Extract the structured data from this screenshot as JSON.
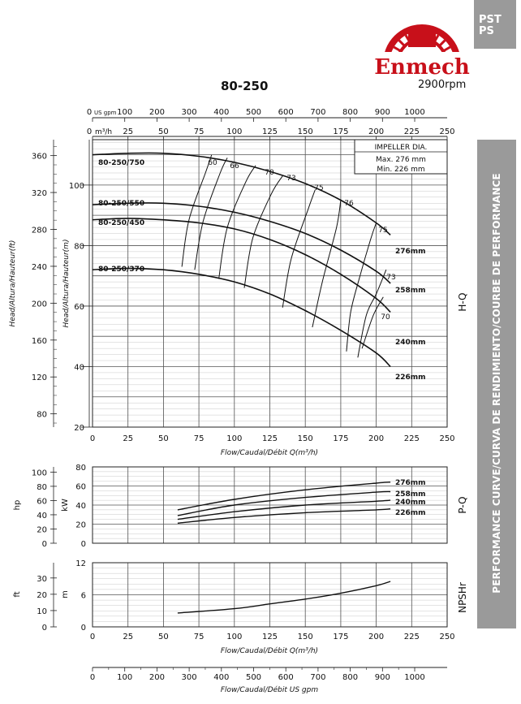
{
  "corner_tag": {
    "line1": "PST",
    "line2": "PS"
  },
  "logo": {
    "brand": "Enmech"
  },
  "header": {
    "model": "80-250",
    "speed": "2900rpm"
  },
  "side_panel": {
    "text": "PERFORMANCE CURVE/CURVA DE RENDIMIENTO/COURBE DE PERFORMANCE"
  },
  "colors": {
    "panel_gray": "#9a9a9a",
    "logo_red": "#c8101a",
    "grid_major": "#555555",
    "grid_minor": "#c8c8c8",
    "line": "#111111"
  },
  "chart_data": [
    {
      "type": "line",
      "name": "H-Q",
      "panel_label": "H-Q",
      "ylabel_left": "Head/Altura/Hauteur(ft)",
      "ylabel_right": "Head/Altura/Hauteur(m)",
      "xlabel": "Flow/Caudal/Débit Q(m³/h)",
      "xlim": [
        0,
        250
      ],
      "ylim": [
        20,
        115
      ],
      "x_ticks": [
        0,
        25,
        50,
        75,
        100,
        125,
        150,
        175,
        200,
        225,
        250
      ],
      "y_ticks_m": [
        20,
        40,
        60,
        80,
        100
      ],
      "y_ticks_ft": [
        80,
        120,
        160,
        200,
        240,
        280,
        320,
        360
      ],
      "top_axis_m3h": {
        "unit": "m³/h",
        "ticks": [
          0,
          25,
          50,
          75,
          100,
          125,
          150,
          175,
          200,
          225,
          250
        ]
      },
      "top_axis_gpm": {
        "unit": "US gpm",
        "ticks": [
          0,
          100,
          200,
          300,
          400,
          500,
          600,
          700,
          800,
          900,
          1000
        ]
      },
      "impeller_box": {
        "title": "IMPELLER DIA.",
        "max": "Max. 276 mm",
        "min": "Min.  226 mm"
      },
      "series": [
        {
          "name": "276mm",
          "motor": "80-250/750",
          "x": [
            0,
            25,
            50,
            75,
            100,
            125,
            150,
            175,
            200,
            210
          ],
          "y": [
            110,
            110.5,
            110.5,
            109.5,
            107.5,
            104.5,
            100.5,
            95,
            87.5,
            83.5
          ]
        },
        {
          "name": "258mm",
          "motor": "80-250/550",
          "x": [
            0,
            25,
            50,
            75,
            100,
            125,
            150,
            175,
            200,
            210
          ],
          "y": [
            93.5,
            94,
            94,
            93,
            91,
            88,
            84,
            78.5,
            71.5,
            67.5
          ]
        },
        {
          "name": "240mm",
          "motor": "80-250/450",
          "x": [
            0,
            25,
            50,
            75,
            100,
            125,
            150,
            175,
            200,
            210
          ],
          "y": [
            88.5,
            89,
            88.5,
            87.5,
            85.5,
            82,
            77,
            70.5,
            62.5,
            58
          ]
        },
        {
          "name": "226mm",
          "motor": "80-250/370",
          "x": [
            0,
            25,
            50,
            75,
            100,
            125,
            150,
            175,
            200,
            210
          ],
          "y": [
            72,
            72.5,
            72,
            70.5,
            68,
            64,
            58.5,
            52,
            44.5,
            40
          ]
        }
      ],
      "efficiency_labels": [
        "60",
        "66",
        "70",
        "73",
        "75",
        "76",
        "75",
        "73",
        "70"
      ],
      "efficiency_curves": [
        {
          "label": "60",
          "x": [
            63,
            68,
            80,
            84
          ],
          "y": [
            73,
            88.5,
            104.5,
            110
          ]
        },
        {
          "label": "66",
          "x": [
            72,
            78,
            90,
            95
          ],
          "y": [
            72,
            88,
            104,
            109
          ]
        },
        {
          "label": "70",
          "x": [
            89,
            95,
            108,
            115
          ],
          "y": [
            69,
            86,
            101,
            106.5
          ]
        },
        {
          "label": "73",
          "x": [
            107,
            113,
            126,
            134
          ],
          "y": [
            66,
            82.5,
            97,
            103
          ]
        },
        {
          "label": "75",
          "x": [
            134,
            140,
            152,
            157
          ],
          "y": [
            59.5,
            75.5,
            92,
            98.5
          ]
        },
        {
          "label": "76",
          "x": [
            155,
            162,
            172,
            175
          ],
          "y": [
            53,
            68,
            86,
            95
          ]
        },
        {
          "label": "75",
          "x": [
            179,
            182,
            188,
            196,
            200
          ],
          "y": [
            45,
            58,
            69,
            82,
            87.5
          ]
        },
        {
          "label": "73",
          "x": [
            187,
            193,
            200,
            207
          ],
          "y": [
            43,
            57,
            64,
            72
          ]
        },
        {
          "label": "70",
          "x": [
            190,
            198,
            205
          ],
          "y": [
            46,
            57,
            63
          ]
        }
      ]
    },
    {
      "type": "line",
      "name": "P-Q",
      "panel_label": "P-Q",
      "ylabel_left": "hp",
      "ylabel_right": "kW",
      "xlim": [
        0,
        250
      ],
      "ylim": [
        0,
        80
      ],
      "y_ticks_kw": [
        0,
        20,
        40,
        60,
        80
      ],
      "y_ticks_hp": [
        0,
        20,
        40,
        60,
        80,
        100
      ],
      "series": [
        {
          "name": "276mm",
          "x": [
            60,
            100,
            150,
            200,
            210
          ],
          "y": [
            35,
            46,
            56,
            63,
            64
          ]
        },
        {
          "name": "258mm",
          "x": [
            60,
            100,
            150,
            200,
            210
          ],
          "y": [
            29,
            40,
            48,
            53.5,
            54
          ]
        },
        {
          "name": "240mm",
          "x": [
            60,
            100,
            150,
            200,
            210
          ],
          "y": [
            25,
            33,
            40,
            44,
            45
          ]
        },
        {
          "name": "226mm",
          "x": [
            60,
            100,
            150,
            200,
            210
          ],
          "y": [
            21,
            27,
            32,
            35,
            36
          ]
        }
      ]
    },
    {
      "type": "line",
      "name": "NPSHr",
      "panel_label": "NPSHr",
      "ylabel_left": "ft",
      "ylabel_right": "m",
      "xlabel": "Flow/Caudal/Débit Q(m³/h)",
      "xlim": [
        0,
        250
      ],
      "ylim": [
        0,
        12
      ],
      "y_ticks_m": [
        0,
        6,
        12
      ],
      "y_ticks_ft": [
        0,
        10,
        20,
        30
      ],
      "series": [
        {
          "name": "NPSHr",
          "x": [
            60,
            100,
            125,
            150,
            175,
            200,
            210
          ],
          "y": [
            2.6,
            3.4,
            4.3,
            5.2,
            6.3,
            7.7,
            8.5
          ]
        }
      ]
    }
  ],
  "bottom_axis": {
    "xlabel": "Flow/Caudal/Débit  US gpm",
    "ticks": [
      0,
      100,
      200,
      300,
      400,
      500,
      600,
      700,
      800,
      900,
      1000
    ]
  }
}
